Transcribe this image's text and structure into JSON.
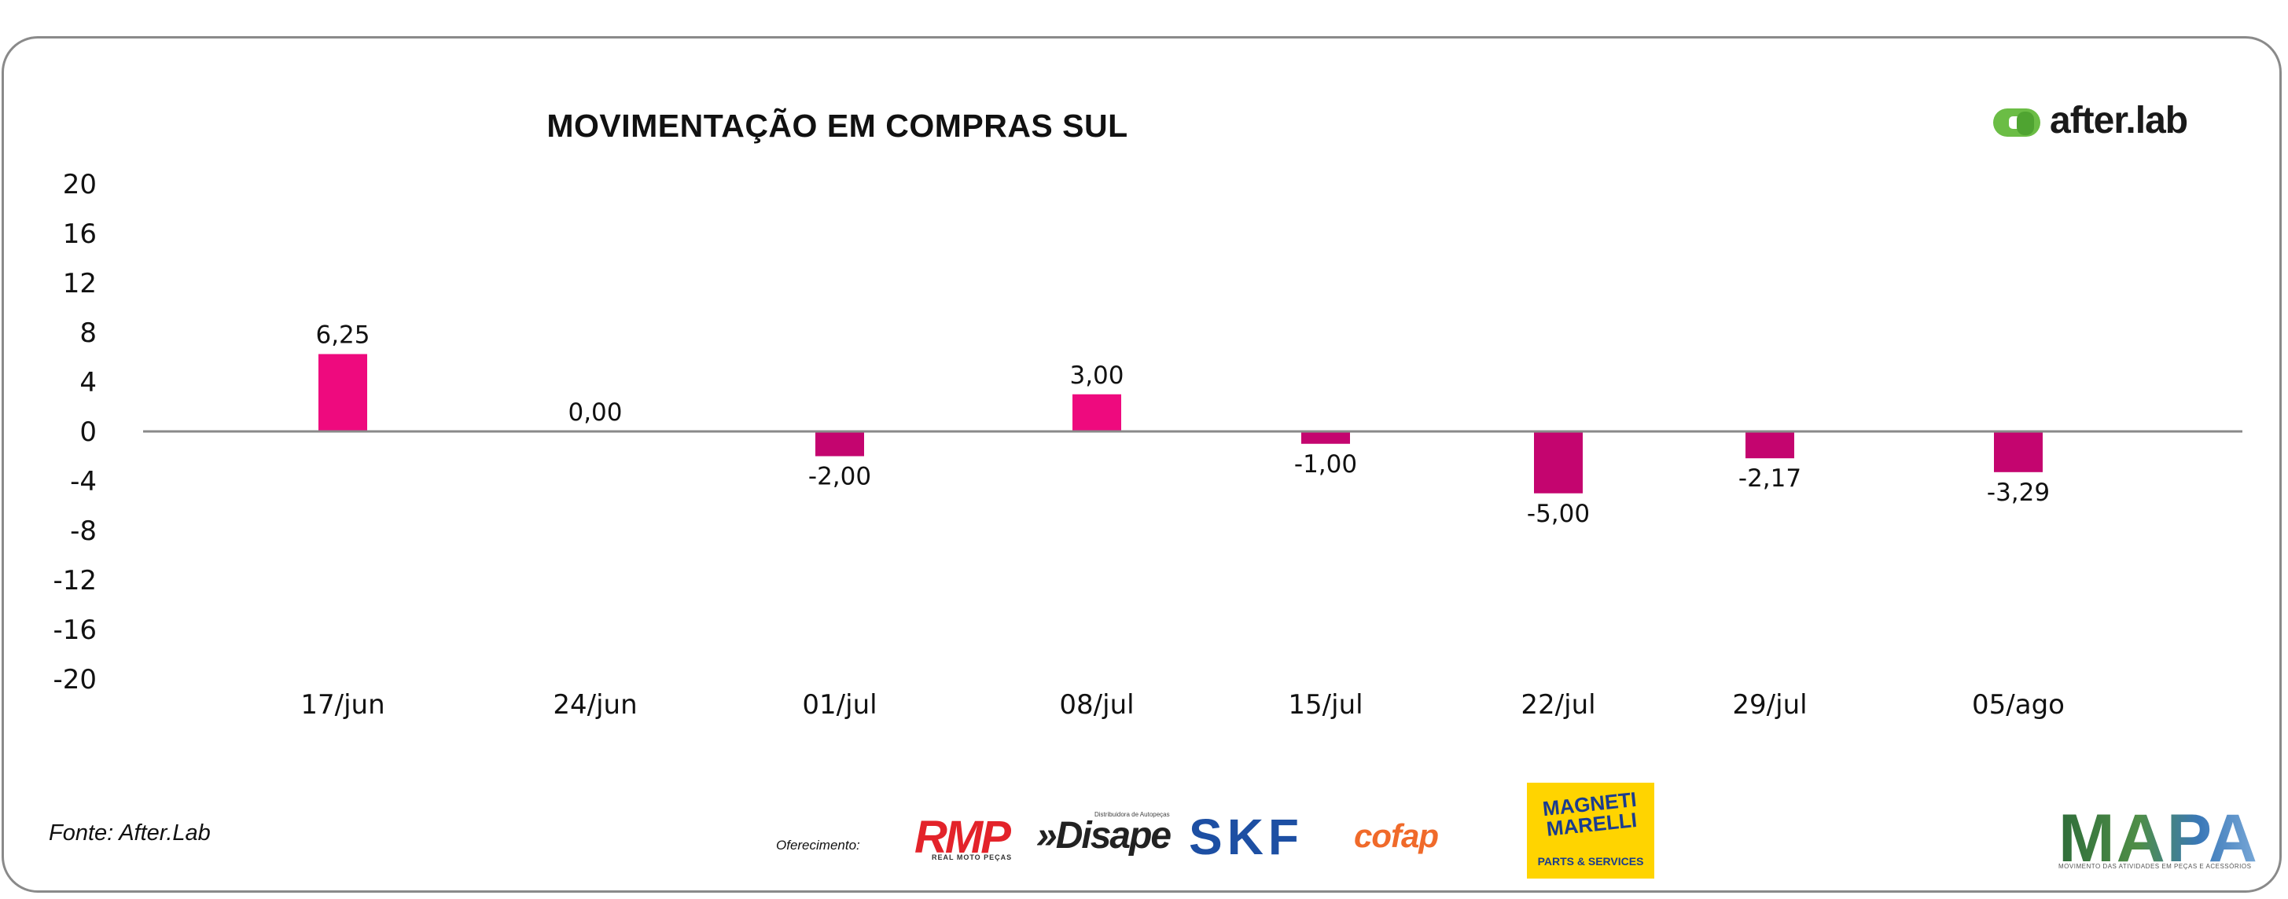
{
  "chart_data": {
    "type": "bar",
    "title": "MOVIMENTAÇÃO EM COMPRAS SUL",
    "categories": [
      "17/jun",
      "24/jun",
      "01/jul",
      "08/jul",
      "15/jul",
      "22/jul",
      "29/jul",
      "05/ago"
    ],
    "values": [
      6.25,
      0.0,
      -2.0,
      3.0,
      -1.0,
      -5.0,
      -2.17,
      -3.29
    ],
    "value_labels": [
      "6,25",
      "0,00",
      "-2,00",
      "3,00",
      "-1,00",
      "-5,00",
      "-2,17",
      "-3,29"
    ],
    "yticks": [
      20,
      16,
      12,
      8,
      4,
      0,
      -4,
      -8,
      -12,
      -16,
      -20
    ],
    "ylim": [
      -20,
      20
    ],
    "xlabel": "",
    "ylabel": "",
    "grid": false,
    "colors": {
      "positive": "#ee0a7e",
      "negative": "#c4056f",
      "axis": "#8a8a8a"
    }
  },
  "source": "Fonte: After.Lab",
  "sponsor_label": "Oferecimento:",
  "brand": {
    "name": "after.lab",
    "mark_color": "#6bbd45"
  },
  "sponsors": {
    "rmp": "RMP",
    "rmp_sub": "REAL MOTO PEÇAS",
    "disape": "»Disape",
    "disape_sub": "Distribuidora de Autopeças",
    "skf": "SKF",
    "cofap": "cofap",
    "magneti_marelli": "MAGNETI MARELLI",
    "magneti_sub": "PARTS & SERVICES"
  },
  "mapa": {
    "name": "MAPA",
    "tagline": "MOVIMENTO DAS ATIVIDADES EM PEÇAS E ACESSÓRIOS"
  }
}
